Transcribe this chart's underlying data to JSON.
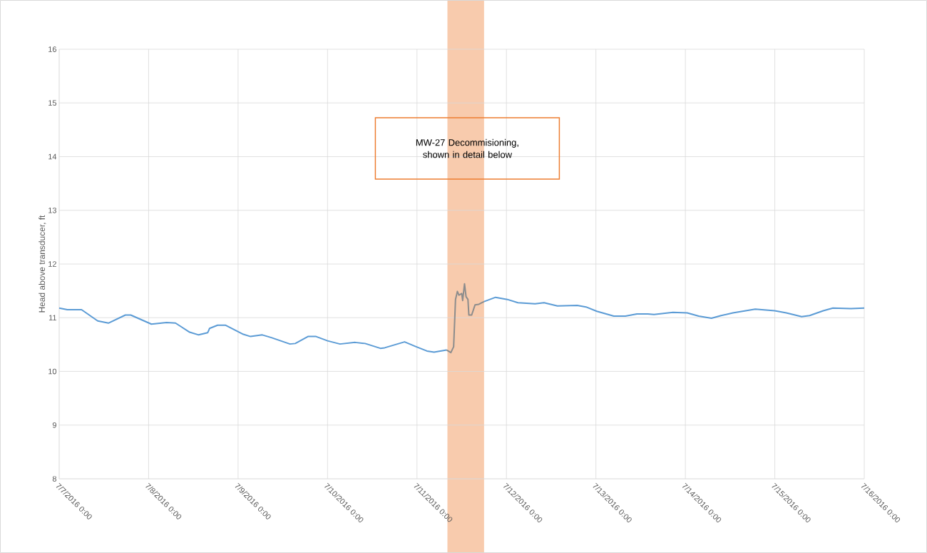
{
  "chart_data": {
    "type": "line",
    "ylabel": "Head above transducer, ft",
    "annotations": [
      "MW-27 Decommisioning, shown in detail below"
    ],
    "xlim": [
      "2016-07-07T00:00",
      "2016-07-16T00:00"
    ],
    "xticks": [
      {
        "value": "2016-07-07T00:00",
        "label": "7/7/2016 0:00"
      },
      {
        "value": "2016-07-08T00:00",
        "label": "7/8/2016 0:00"
      },
      {
        "value": "2016-07-09T00:00",
        "label": "7/9/2016 0:00"
      },
      {
        "value": "2016-07-10T00:00",
        "label": "7/10/2016 0:00"
      },
      {
        "value": "2016-07-11T00:00",
        "label": "7/11/2016 0:00"
      },
      {
        "value": "2016-07-12T00:00",
        "label": "7/12/2016 0:00"
      },
      {
        "value": "2016-07-13T00:00",
        "label": "7/13/2016 0:00"
      },
      {
        "value": "2016-07-14T00:00",
        "label": "7/14/2016 0:00"
      },
      {
        "value": "2016-07-15T00:00",
        "label": "7/15/2016 0:00"
      },
      {
        "value": "2016-07-16T00:00",
        "label": "7/16/2016 0:00"
      }
    ],
    "ylim": [
      8,
      16
    ],
    "yticks": [
      8,
      9,
      10,
      11,
      12,
      13,
      14,
      15,
      16
    ],
    "grid": true,
    "marker": "none",
    "line_style": "solid",
    "bands": [
      {
        "axis": "x",
        "from": "2016-07-11T08:10",
        "to": "2016-07-11T18:00",
        "color": "#f8cbad"
      }
    ],
    "series": [
      {
        "color": "#5b9bd5",
        "x": [
          "2016-07-07T00:00",
          "2016-07-07T02:10",
          "2016-07-07T06:00",
          "2016-07-07T10:20",
          "2016-07-07T13:12",
          "2016-07-07T17:45",
          "2016-07-07T19:12",
          "2016-07-08T00:45",
          "2016-07-08T04:48",
          "2016-07-08T07:12",
          "2016-07-08T11:00",
          "2016-07-08T13:25",
          "2016-07-08T15:50",
          "2016-07-08T16:20",
          "2016-07-08T18:30",
          "2016-07-08T20:40",
          "2016-07-09T01:25",
          "2016-07-09T03:20",
          "2016-07-09T06:30",
          "2016-07-09T08:55",
          "2016-07-09T13:55",
          "2016-07-09T15:20",
          "2016-07-09T18:45",
          "2016-07-09T20:55",
          "2016-07-10T00:00",
          "2016-07-10T03:20",
          "2016-07-10T07:25",
          "2016-07-10T10:05",
          "2016-07-10T14:10",
          "2016-07-10T15:20",
          "2016-07-10T20:40",
          "2016-07-10T23:45",
          "2016-07-11T02:40",
          "2016-07-11T04:35",
          "2016-07-11T07:55",
          "2016-07-11T12:00",
          "2016-07-11T18:00",
          "2016-07-11T21:05",
          "2016-07-12T00:15",
          "2016-07-12T03:05",
          "2016-07-12T07:40",
          "2016-07-12T10:05",
          "2016-07-12T13:40",
          "2016-07-12T19:00",
          "2016-07-12T21:20",
          "2016-07-13T00:15",
          "2016-07-13T04:48",
          "2016-07-13T07:55",
          "2016-07-13T11:00",
          "2016-07-13T13:55",
          "2016-07-13T15:35",
          "2016-07-13T20:40",
          "2016-07-14T00:30",
          "2016-07-14T03:35",
          "2016-07-14T07:00",
          "2016-07-14T09:35",
          "2016-07-14T12:45",
          "2016-07-14T18:45",
          "2016-07-15T00:00",
          "2016-07-15T03:05",
          "2016-07-15T07:12",
          "2016-07-15T09:20",
          "2016-07-15T13:00",
          "2016-07-15T15:35",
          "2016-07-15T20:24",
          "2016-07-16T00:00"
        ],
        "values": [
          11.18,
          11.15,
          11.15,
          10.94,
          10.9,
          11.05,
          11.05,
          10.88,
          10.91,
          10.9,
          10.73,
          10.68,
          10.72,
          10.8,
          10.86,
          10.86,
          10.69,
          10.65,
          10.68,
          10.63,
          10.51,
          10.52,
          10.65,
          10.65,
          10.57,
          10.51,
          10.54,
          10.52,
          10.43,
          10.44,
          10.55,
          10.46,
          10.38,
          10.36,
          10.4,
          null,
          11.3,
          11.38,
          11.34,
          11.28,
          11.26,
          11.28,
          11.22,
          11.23,
          11.2,
          11.12,
          11.03,
          11.03,
          11.07,
          11.07,
          11.06,
          11.1,
          11.09,
          11.03,
          10.99,
          11.04,
          11.09,
          11.16,
          11.13,
          11.09,
          11.02,
          11.04,
          11.13,
          11.18,
          11.17,
          11.18
        ]
      },
      {
        "color": "#8c8c8c",
        "x": [
          "2016-07-11T07:55",
          "2016-07-11T09:05",
          "2016-07-11T09:50",
          "2016-07-11T10:20",
          "2016-07-11T10:50",
          "2016-07-11T11:15",
          "2016-07-11T12:00",
          "2016-07-11T12:15",
          "2016-07-11T12:45",
          "2016-07-11T13:10",
          "2016-07-11T13:40",
          "2016-07-11T13:55",
          "2016-07-11T14:40",
          "2016-07-11T15:35",
          "2016-07-11T16:35",
          "2016-07-11T18:00"
        ],
        "values": [
          10.4,
          10.35,
          10.46,
          11.34,
          11.49,
          11.42,
          11.45,
          11.32,
          11.63,
          11.39,
          11.34,
          11.05,
          11.05,
          11.24,
          11.25,
          11.3
        ]
      }
    ]
  }
}
